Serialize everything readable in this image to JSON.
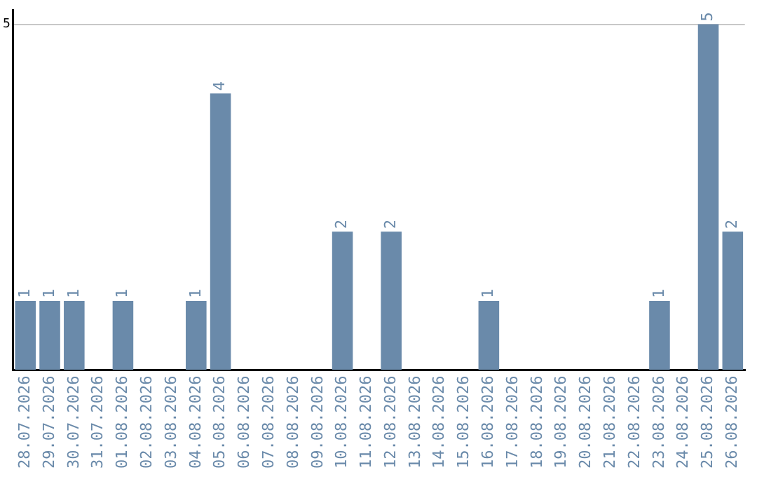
{
  "chart_data": {
    "type": "bar",
    "categories": [
      "28.07.2026",
      "29.07.2026",
      "30.07.2026",
      "31.07.2026",
      "01.08.2026",
      "02.08.2026",
      "03.08.2026",
      "04.08.2026",
      "05.08.2026",
      "06.08.2026",
      "07.08.2026",
      "08.08.2026",
      "09.08.2026",
      "10.08.2026",
      "11.08.2026",
      "12.08.2026",
      "13.08.2026",
      "14.08.2026",
      "15.08.2026",
      "16.08.2026",
      "17.08.2026",
      "18.08.2026",
      "19.08.2026",
      "20.08.2026",
      "21.08.2026",
      "22.08.2026",
      "23.08.2026",
      "24.08.2026",
      "25.08.2026",
      "26.08.2026"
    ],
    "values": [
      1,
      1,
      1,
      0,
      1,
      0,
      0,
      1,
      4,
      0,
      0,
      0,
      0,
      2,
      0,
      2,
      0,
      0,
      0,
      1,
      0,
      0,
      0,
      0,
      0,
      0,
      1,
      0,
      5,
      2
    ],
    "value_labels": [
      "1",
      "1",
      "1",
      null,
      "1",
      null,
      null,
      "1",
      "4",
      null,
      null,
      null,
      null,
      "2",
      null,
      "2",
      null,
      null,
      null,
      "1",
      null,
      null,
      null,
      null,
      null,
      null,
      "1",
      null,
      "5",
      "2"
    ],
    "color": "#6a8aaa",
    "ylim": [
      0,
      5.2
    ],
    "yticks": [
      5
    ],
    "grid": "y",
    "legend": false
  }
}
